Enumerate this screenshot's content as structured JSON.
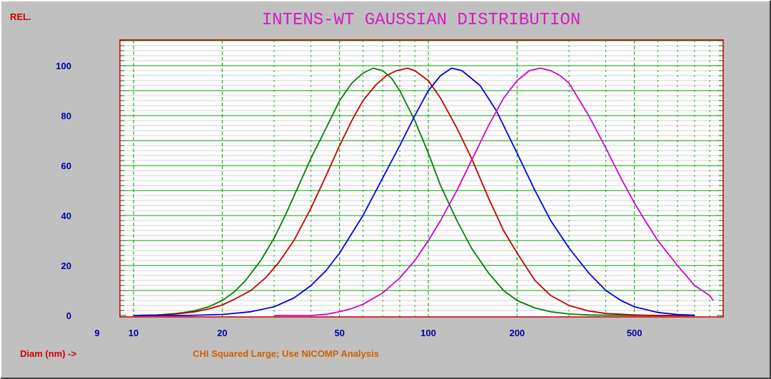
{
  "rel_label": "REL.",
  "status_message": "CHI Squared Large; Use NICOMP Analysis",
  "colors": {
    "background": "#c0c0c0",
    "plot_background": "#ffffff",
    "title": "#d020c0",
    "major_grid": "#00a000",
    "minor_grid": "#c0c0c0",
    "axis_text": "#0000a0",
    "label_red": "#d00000",
    "status_orange": "#d06000"
  },
  "chart_data": {
    "type": "line",
    "title": "INTENS-WT GAUSSIAN DISTRIBUTION",
    "xlabel": "Diam (nm) ->",
    "ylabel": "",
    "x_scale": "log",
    "xlim": [
      10,
      1000
    ],
    "ylim": [
      0,
      110
    ],
    "x_ticks": [
      {
        "value": 9,
        "label": "9"
      },
      {
        "value": 10,
        "label": "10"
      },
      {
        "value": 20,
        "label": "20"
      },
      {
        "value": 50,
        "label": "50"
      },
      {
        "value": 100,
        "label": "100"
      },
      {
        "value": 200,
        "label": "200"
      },
      {
        "value": 500,
        "label": "500"
      }
    ],
    "y_ticks": [
      0,
      20,
      40,
      60,
      80,
      100
    ],
    "grid": true,
    "series": [
      {
        "color": "#008000",
        "x": [
          10,
          12,
          14,
          16,
          18,
          20,
          22,
          24,
          27,
          30,
          33,
          36,
          40,
          45,
          50,
          55,
          60,
          65,
          70,
          75,
          80,
          90,
          100,
          110,
          125,
          140,
          160,
          180,
          200,
          230,
          260,
          300,
          350,
          400,
          500,
          600,
          700,
          800
        ],
        "y": [
          0,
          0.2,
          0.8,
          1.8,
          3.5,
          6,
          9.5,
          14,
          22,
          31,
          41,
          51,
          63,
          75,
          86,
          93,
          97,
          99,
          98,
          95,
          90,
          78,
          65,
          52,
          38,
          27,
          17,
          10,
          6,
          3,
          1.5,
          0.6,
          0.2,
          0.1,
          0,
          0,
          0,
          0
        ]
      },
      {
        "color": "#c00000",
        "x": [
          10,
          12,
          14,
          16,
          18,
          20,
          22,
          25,
          28,
          31,
          35,
          40,
          45,
          50,
          55,
          60,
          66,
          72,
          78,
          85,
          90,
          100,
          110,
          125,
          140,
          160,
          180,
          200,
          230,
          260,
          300,
          350,
          400,
          500,
          600,
          700,
          800
        ],
        "y": [
          0,
          0.2,
          0.6,
          1.4,
          2.6,
          4.2,
          6.5,
          10,
          15,
          21,
          30,
          43,
          56,
          68,
          78,
          86,
          92,
          96,
          98,
          99,
          98,
          94,
          87,
          75,
          63,
          47,
          34,
          25,
          14,
          8,
          4,
          1.8,
          0.8,
          0.2,
          0,
          0,
          0
        ]
      },
      {
        "color": "#0000e0",
        "x": [
          10,
          15,
          20,
          25,
          30,
          35,
          40,
          45,
          50,
          60,
          70,
          80,
          90,
          100,
          110,
          120,
          130,
          150,
          170,
          200,
          230,
          260,
          300,
          350,
          400,
          450,
          500,
          600,
          700,
          800
        ],
        "y": [
          0,
          0,
          0.4,
          1.5,
          3.5,
          7,
          12,
          18,
          25,
          40,
          55,
          68,
          80,
          90,
          96,
          99,
          98,
          92,
          82,
          65,
          50,
          38,
          27,
          17,
          10,
          6,
          3.5,
          1.2,
          0.4,
          0.1
        ]
      },
      {
        "color": "#d000d0",
        "x": [
          30,
          35,
          40,
          45,
          50,
          55,
          60,
          70,
          80,
          90,
          100,
          110,
          125,
          140,
          160,
          180,
          200,
          220,
          240,
          260,
          280,
          300,
          350,
          400,
          450,
          500,
          550,
          600,
          700,
          800,
          900,
          1000
        ],
        "y": [
          0,
          0,
          0,
          0.5,
          1.5,
          2.8,
          4.5,
          9,
          15,
          22,
          30,
          38,
          50,
          62,
          76,
          87,
          94,
          98,
          99,
          98,
          96,
          93,
          80,
          67,
          55,
          45,
          37,
          30,
          20,
          12,
          8,
          6
        ]
      }
    ]
  }
}
